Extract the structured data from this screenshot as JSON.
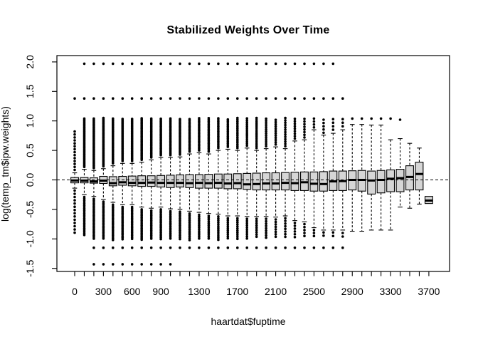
{
  "chart_data": {
    "type": "boxplot",
    "title": "Stabilized Weights Over Time",
    "xlabel": "haartdat$fuptime",
    "ylabel": "log(temp_tm$ipw.weights)",
    "grid": false,
    "legend": "none",
    "ylim": [
      -1.56,
      2.11
    ],
    "zero_reference_line": {
      "y": 0.0,
      "style": "dashed"
    },
    "y_ticks": [
      {
        "v": 2.0,
        "label": "2.0"
      },
      {
        "v": 1.5,
        "label": "1.5"
      },
      {
        "v": 1.0,
        "label": "1.0"
      },
      {
        "v": 0.5,
        "label": "0.5"
      },
      {
        "v": 0.0,
        "label": "0.0"
      },
      {
        "v": -0.5,
        "label": "-0.5"
      },
      {
        "v": -1.0,
        "label": "-1.0"
      },
      {
        "v": -1.5,
        "label": "-1.5"
      }
    ],
    "x_tick_labels": [
      {
        "t": 0,
        "label": "0"
      },
      {
        "t": 300,
        "label": "300"
      },
      {
        "t": 600,
        "label": "600"
      },
      {
        "t": 900,
        "label": "900"
      },
      {
        "t": 1300,
        "label": "1300"
      },
      {
        "t": 1700,
        "label": "1700"
      },
      {
        "t": 2100,
        "label": "2100"
      },
      {
        "t": 2500,
        "label": "2500"
      },
      {
        "t": 2900,
        "label": "2900"
      },
      {
        "t": 3300,
        "label": "3300"
      },
      {
        "t": 3700,
        "label": "3700"
      }
    ],
    "x_minor_tick_every_category": true,
    "box_fill": "#d6d6d6",
    "line_color": "#000000",
    "outlier_rows": [
      {
        "y": 1.97,
        "t_from": 100,
        "t_to": 2700
      },
      {
        "y": 1.38,
        "t_from": 0,
        "t_to": 2800
      },
      {
        "y": -1.15,
        "t_from": 200,
        "t_to": 2800
      },
      {
        "y": -1.43,
        "t_from": 200,
        "t_to": 1000
      }
    ],
    "boxes": [
      {
        "t": 0,
        "q1": -0.05,
        "med": -0.01,
        "q3": 0.04,
        "wlo": -0.14,
        "whi": 0.12,
        "uo": [
          0.17,
          0.86,
          0.05
        ],
        "lo": [
          -0.18,
          -0.92,
          0.055
        ]
      },
      {
        "t": 100,
        "q1": -0.05,
        "med": -0.012,
        "q3": 0.04,
        "wlo": -0.25,
        "whi": 0.18,
        "uo": [
          0.22,
          1.05,
          0.02
        ],
        "lo": [
          -0.29,
          -0.95,
          0.028
        ]
      },
      {
        "t": 200,
        "q1": -0.055,
        "med": -0.025,
        "q3": 0.035,
        "wlo": -0.28,
        "whi": 0.16,
        "uo": [
          0.2,
          1.05,
          0.02
        ],
        "lo": [
          -0.32,
          -1.0,
          0.026
        ]
      },
      {
        "t": 300,
        "q1": -0.06,
        "med": -0.012,
        "q3": 0.06,
        "wlo": -0.33,
        "whi": 0.19,
        "uo": [
          0.23,
          1.05,
          0.02
        ],
        "lo": [
          -0.37,
          -1.0,
          0.026
        ]
      },
      {
        "t": 400,
        "q1": -0.1,
        "med": -0.055,
        "q3": 0.055,
        "wlo": -0.38,
        "whi": 0.24,
        "uo": [
          0.28,
          1.05,
          0.02
        ],
        "lo": [
          -0.42,
          -1.02,
          0.026
        ]
      },
      {
        "t": 500,
        "q1": -0.09,
        "med": -0.04,
        "q3": 0.06,
        "wlo": -0.42,
        "whi": 0.28,
        "uo": [
          0.32,
          1.05,
          0.021
        ],
        "lo": [
          -0.46,
          -1.02,
          0.026
        ]
      },
      {
        "t": 600,
        "q1": -0.1,
        "med": -0.05,
        "q3": 0.065,
        "wlo": -0.42,
        "whi": 0.28,
        "uo": [
          0.32,
          1.05,
          0.021
        ],
        "lo": [
          -0.46,
          -1.02,
          0.027
        ]
      },
      {
        "t": 700,
        "q1": -0.11,
        "med": -0.05,
        "q3": 0.07,
        "wlo": -0.46,
        "whi": 0.3,
        "uo": [
          0.34,
          1.05,
          0.022
        ],
        "lo": [
          -0.5,
          -1.02,
          0.027
        ]
      },
      {
        "t": 800,
        "q1": -0.11,
        "med": -0.045,
        "q3": 0.07,
        "wlo": -0.48,
        "whi": 0.34,
        "uo": [
          0.38,
          1.05,
          0.022
        ],
        "lo": [
          -0.52,
          -1.02,
          0.028
        ]
      },
      {
        "t": 900,
        "q1": -0.12,
        "med": -0.05,
        "q3": 0.075,
        "wlo": -0.46,
        "whi": 0.38,
        "uo": [
          0.42,
          1.05,
          0.022
        ],
        "lo": [
          -0.5,
          -1.02,
          0.028
        ]
      },
      {
        "t": 1000,
        "q1": -0.13,
        "med": -0.05,
        "q3": 0.08,
        "wlo": -0.49,
        "whi": 0.38,
        "uo": [
          0.42,
          1.05,
          0.023
        ],
        "lo": [
          -0.53,
          -1.02,
          0.029
        ]
      },
      {
        "t": 1100,
        "q1": -0.12,
        "med": -0.05,
        "q3": 0.085,
        "wlo": -0.5,
        "whi": 0.39,
        "uo": [
          0.43,
          1.05,
          0.024
        ],
        "lo": [
          -0.54,
          -1.02,
          0.029
        ]
      },
      {
        "t": 1200,
        "q1": -0.13,
        "med": -0.055,
        "q3": 0.09,
        "wlo": -0.53,
        "whi": 0.44,
        "uo": [
          0.48,
          1.05,
          0.025
        ],
        "lo": [
          -0.57,
          -1.02,
          0.03
        ]
      },
      {
        "t": 1300,
        "q1": -0.14,
        "med": -0.05,
        "q3": 0.09,
        "wlo": -0.55,
        "whi": 0.46,
        "uo": [
          0.5,
          1.05,
          0.026
        ],
        "lo": [
          -0.59,
          -1.02,
          0.031
        ]
      },
      {
        "t": 1400,
        "q1": -0.14,
        "med": -0.055,
        "q3": 0.095,
        "wlo": -0.57,
        "whi": 0.44,
        "uo": [
          0.48,
          1.05,
          0.027
        ],
        "lo": [
          -0.61,
          -1.02,
          0.032
        ]
      },
      {
        "t": 1500,
        "q1": -0.14,
        "med": -0.05,
        "q3": 0.1,
        "wlo": -0.58,
        "whi": 0.5,
        "uo": [
          0.54,
          1.05,
          0.028
        ],
        "lo": [
          -0.62,
          -1.02,
          0.033
        ]
      },
      {
        "t": 1600,
        "q1": -0.15,
        "med": -0.06,
        "q3": 0.1,
        "wlo": -0.61,
        "whi": 0.52,
        "uo": [
          0.56,
          1.05,
          0.029
        ],
        "lo": [
          -0.65,
          -1.02,
          0.034
        ]
      },
      {
        "t": 1700,
        "q1": -0.15,
        "med": -0.055,
        "q3": 0.105,
        "wlo": -0.61,
        "whi": 0.5,
        "uo": [
          0.54,
          1.05,
          0.03
        ],
        "lo": [
          -0.65,
          -1.02,
          0.035
        ]
      },
      {
        "t": 1800,
        "q1": -0.16,
        "med": -0.075,
        "q3": 0.11,
        "wlo": -0.62,
        "whi": 0.54,
        "uo": [
          0.58,
          1.05,
          0.033
        ],
        "lo": [
          -0.66,
          -1.0,
          0.037
        ]
      },
      {
        "t": 1900,
        "q1": -0.17,
        "med": -0.07,
        "q3": 0.115,
        "wlo": -0.62,
        "whi": 0.5,
        "uo": [
          0.54,
          1.05,
          0.034
        ],
        "lo": [
          -0.66,
          -1.0,
          0.038
        ]
      },
      {
        "t": 2000,
        "q1": -0.17,
        "med": -0.06,
        "q3": 0.12,
        "wlo": -0.62,
        "whi": 0.53,
        "uo": [
          0.57,
          1.05,
          0.036
        ],
        "lo": [
          -0.66,
          -1.0,
          0.04
        ]
      },
      {
        "t": 2100,
        "q1": -0.17,
        "med": -0.06,
        "q3": 0.12,
        "wlo": -0.63,
        "whi": 0.56,
        "uo": [
          0.6,
          1.05,
          0.038
        ],
        "lo": [
          -0.67,
          -1.0,
          0.042
        ]
      },
      {
        "t": 2200,
        "q1": -0.17,
        "med": -0.05,
        "q3": 0.125,
        "wlo": -0.61,
        "whi": 0.53,
        "uo": [
          0.57,
          1.05,
          0.04
        ],
        "lo": [
          -0.65,
          -1.0,
          0.045
        ]
      },
      {
        "t": 2300,
        "q1": -0.18,
        "med": -0.055,
        "q3": 0.13,
        "wlo": -0.69,
        "whi": 0.66,
        "uo": [
          0.7,
          1.05,
          0.042
        ],
        "lo": [
          -0.73,
          -1.0,
          0.048
        ]
      },
      {
        "t": 2400,
        "q1": -0.18,
        "med": -0.04,
        "q3": 0.135,
        "wlo": -0.71,
        "whi": 0.68,
        "uo": [
          0.72,
          1.05,
          0.045
        ],
        "lo": [
          -0.75,
          -0.98,
          0.05
        ]
      },
      {
        "t": 2500,
        "q1": -0.19,
        "med": -0.065,
        "q3": 0.135,
        "wlo": -0.81,
        "whi": 0.85,
        "uo": [
          0.89,
          1.05,
          0.05
        ],
        "lo": [
          -0.85,
          -0.98,
          0.05
        ]
      },
      {
        "t": 2600,
        "q1": -0.19,
        "med": -0.07,
        "q3": 0.14,
        "wlo": -0.85,
        "whi": 0.76,
        "uo": [
          0.8,
          1.05,
          0.055
        ],
        "lo": [
          -0.89,
          -0.98,
          0.055
        ]
      },
      {
        "t": 2700,
        "q1": -0.18,
        "med": -0.025,
        "q3": 0.15,
        "wlo": -0.85,
        "whi": 0.79,
        "uo": [
          0.85,
          1.03,
          0.06
        ],
        "lo": [
          -0.89,
          -0.97,
          0.06
        ]
      },
      {
        "t": 2800,
        "q1": -0.18,
        "med": -0.02,
        "q3": 0.15,
        "wlo": -0.85,
        "whi": 0.85,
        "uo": [
          0.91,
          1.03,
          0.06
        ],
        "lo": [
          -0.9,
          -0.97,
          0.06
        ]
      },
      {
        "t": 2900,
        "q1": -0.17,
        "med": 0.0,
        "q3": 0.155,
        "wlo": -0.87,
        "whi": 0.94,
        "uo": [
          1.04,
          1.04,
          1
        ],
        "lo": null
      },
      {
        "t": 3000,
        "q1": -0.19,
        "med": 0.0,
        "q3": 0.16,
        "wlo": -0.87,
        "whi": 0.94,
        "uo": [
          1.04,
          1.04,
          1
        ],
        "lo": null
      },
      {
        "t": 3100,
        "q1": -0.24,
        "med": -0.01,
        "q3": 0.15,
        "wlo": -0.85,
        "whi": 0.93,
        "uo": [
          1.04,
          1.04,
          1
        ],
        "lo": null
      },
      {
        "t": 3200,
        "q1": -0.22,
        "med": 0.0,
        "q3": 0.16,
        "wlo": -0.85,
        "whi": 0.93,
        "uo": [
          1.04,
          1.04,
          1
        ],
        "lo": null
      },
      {
        "t": 3300,
        "q1": -0.2,
        "med": 0.02,
        "q3": 0.17,
        "wlo": -0.85,
        "whi": 0.68,
        "uo": [
          1.04,
          1.04,
          1
        ],
        "lo": null
      },
      {
        "t": 3400,
        "q1": -0.2,
        "med": 0.03,
        "q3": 0.18,
        "wlo": -0.46,
        "whi": 0.7,
        "uo": [
          1.02,
          1.02,
          1
        ],
        "lo": null
      },
      {
        "t": 3500,
        "q1": -0.17,
        "med": 0.05,
        "q3": 0.24,
        "wlo": -0.48,
        "whi": 0.62,
        "uo": null,
        "lo": null
      },
      {
        "t": 3600,
        "q1": -0.17,
        "med": 0.1,
        "q3": 0.3,
        "wlo": -0.41,
        "whi": 0.54,
        "uo": null,
        "lo": null
      },
      {
        "t": 3700,
        "q1": -0.4,
        "med": -0.35,
        "q3": -0.28,
        "wlo": null,
        "whi": null,
        "uo": null,
        "lo": null
      }
    ]
  }
}
